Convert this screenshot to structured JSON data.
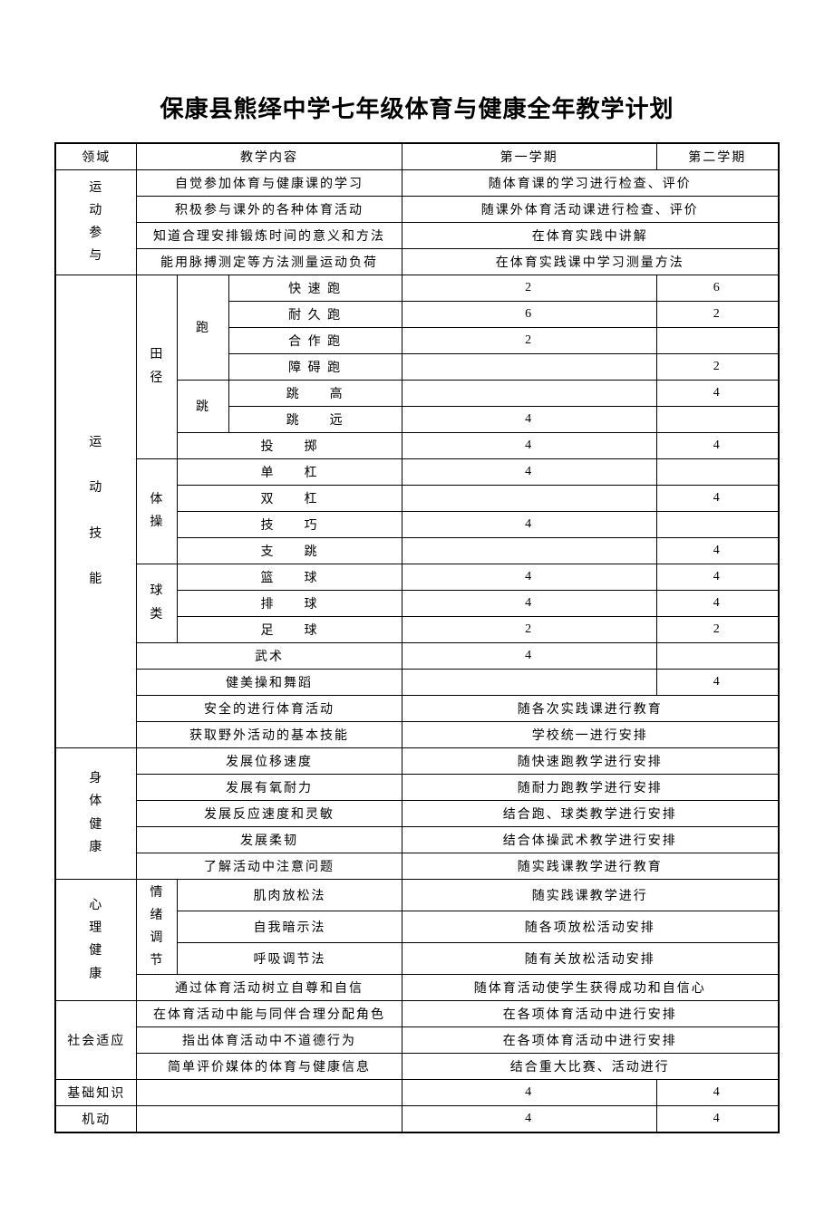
{
  "title": "保康县熊绎中学七年级体育与健康全年教学计划",
  "headers": {
    "domain": "领域",
    "content": "教学内容",
    "sem1": "第一学期",
    "sem2": "第二学期"
  },
  "domains": {
    "participation": "运动参与",
    "skills": "运动技能",
    "physical": "身体健康",
    "mental": "心理健康",
    "social": "社会适应",
    "basic": "基础知识",
    "flex": "机动"
  },
  "participation": {
    "r1": {
      "content": "自觉参加体育与健康课的学习",
      "note": "随体育课的学习进行检查、评价"
    },
    "r2": {
      "content": "积极参与课外的各种体育活动",
      "note": "随课外体育活动课进行检查、评价"
    },
    "r3": {
      "content": "知道合理安排锻炼时间的意义和方法",
      "note": "在体育实践中讲解"
    },
    "r4": {
      "content": "能用脉搏测定等方法测量运动负荷",
      "note": "在体育实践课中学习测量方法"
    }
  },
  "skills": {
    "track": {
      "label": "田径",
      "run": "跑",
      "jump": "跳",
      "items": {
        "sprint": {
          "name": "快 速 跑",
          "s1": "2",
          "s2": "6"
        },
        "endurance": {
          "name": "耐 久 跑",
          "s1": "6",
          "s2": "2"
        },
        "coop": {
          "name": "合 作 跑",
          "s1": "2",
          "s2": ""
        },
        "hurdle": {
          "name": "障 碍 跑",
          "s1": "",
          "s2": "2"
        },
        "highjump": {
          "name": "跳　　高",
          "s1": "",
          "s2": "4"
        },
        "longjump": {
          "name": "跳　　远",
          "s1": "4",
          "s2": ""
        },
        "throw": {
          "name": "投　　掷",
          "s1": "4",
          "s2": "4"
        }
      }
    },
    "gym": {
      "label": "体操",
      "items": {
        "bar1": {
          "name": "单　　杠",
          "s1": "4",
          "s2": ""
        },
        "bar2": {
          "name": "双　　杠",
          "s1": "",
          "s2": "4"
        },
        "skill": {
          "name": "技　　巧",
          "s1": "4",
          "s2": ""
        },
        "vault": {
          "name": "支　　跳",
          "s1": "",
          "s2": "4"
        }
      }
    },
    "ball": {
      "label": "球类",
      "items": {
        "basketball": {
          "name": "篮　　球",
          "s1": "4",
          "s2": "4"
        },
        "volleyball": {
          "name": "排　　球",
          "s1": "4",
          "s2": "4"
        },
        "football": {
          "name": "足　　球",
          "s1": "2",
          "s2": "2"
        }
      }
    },
    "wushu": {
      "name": "武术",
      "s1": "4",
      "s2": ""
    },
    "dance": {
      "name": "健美操和舞蹈",
      "s1": "",
      "s2": "4"
    },
    "safety": {
      "name": "安全的进行体育活动",
      "note": "随各次实践课进行教育"
    },
    "outdoor": {
      "name": "获取野外活动的基本技能",
      "note": "学校统一进行安排"
    }
  },
  "physical": {
    "r1": {
      "content": "发展位移速度",
      "note": "随快速跑教学进行安排"
    },
    "r2": {
      "content": "发展有氧耐力",
      "note": "随耐力跑教学进行安排"
    },
    "r3": {
      "content": "发展反应速度和灵敏",
      "note": "结合跑、球类教学进行安排"
    },
    "r4": {
      "content": "发展柔韧",
      "note": "结合体操武术教学进行安排"
    },
    "r5": {
      "content": "了解活动中注意问题",
      "note": "随实践课教学进行教育"
    }
  },
  "mental": {
    "emotion": "情绪调节",
    "r1": {
      "content": "肌肉放松法",
      "note": "随实践课教学进行"
    },
    "r2": {
      "content": "自我暗示法",
      "note": "随各项放松活动安排"
    },
    "r3": {
      "content": "呼吸调节法",
      "note": "随有关放松活动安排"
    },
    "r4": {
      "content": "通过体育活动树立自尊和自信",
      "note": "随体育活动使学生获得成功和自信心"
    }
  },
  "social": {
    "r1": {
      "content": "在体育活动中能与同伴合理分配角色",
      "note": "在各项体育活动中进行安排"
    },
    "r2": {
      "content": "指出体育活动中不道德行为",
      "note": "在各项体育活动中进行安排"
    },
    "r3": {
      "content": "简单评价媒体的体育与健康信息",
      "note": "结合重大比赛、活动进行"
    }
  },
  "basic": {
    "s1": "4",
    "s2": "4"
  },
  "flex": {
    "s1": "4",
    "s2": "4"
  }
}
